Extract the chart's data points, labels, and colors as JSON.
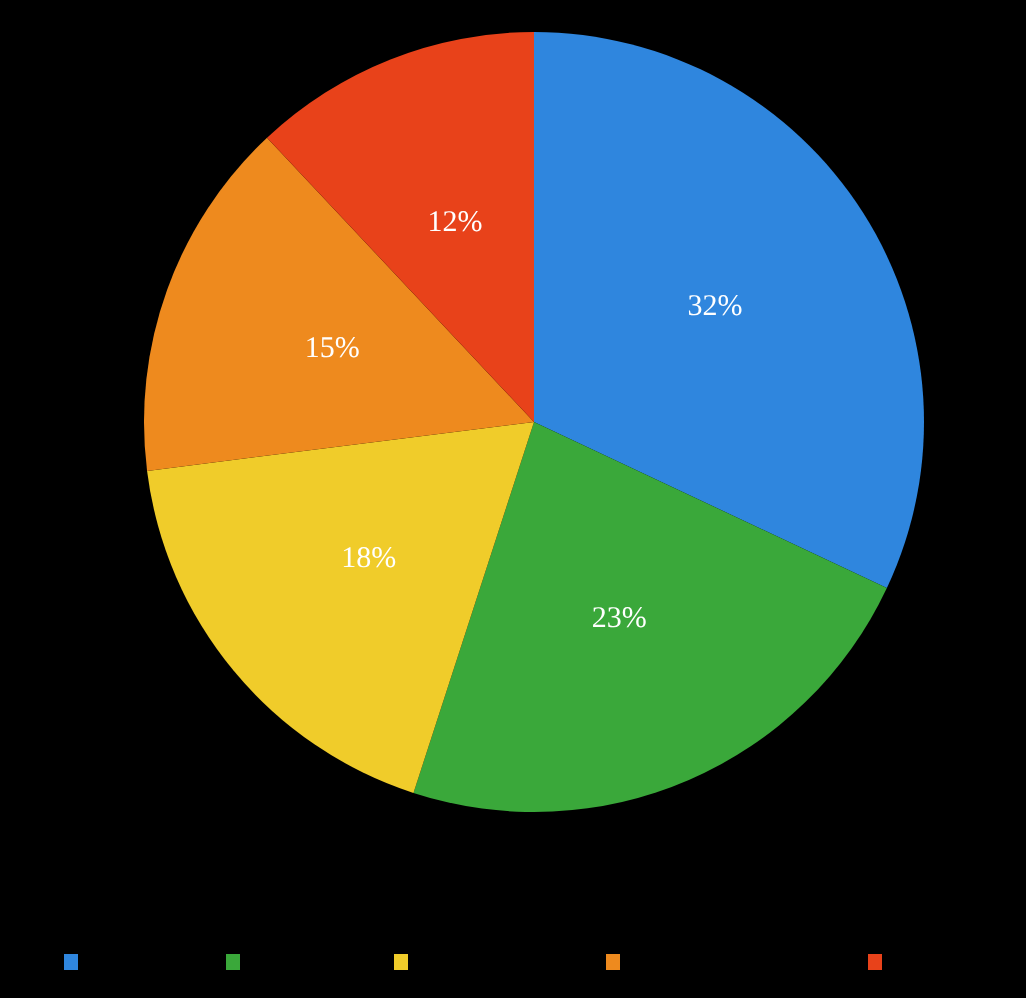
{
  "chart_data": {
    "type": "pie",
    "categories": [
      null,
      null,
      null,
      null,
      null
    ],
    "values": [
      32,
      23,
      18,
      15,
      12
    ],
    "value_labels": [
      "32%",
      "23%",
      "18%",
      "15%",
      "12%"
    ],
    "colors": [
      "#2f86de",
      "#3aa83a",
      "#f0cc2a",
      "#ee8a1e",
      "#e8421a"
    ]
  }
}
